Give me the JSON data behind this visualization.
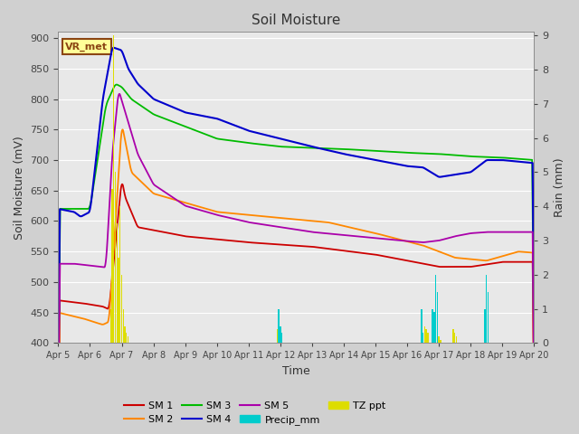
{
  "title": "Soil Moisture",
  "xlabel": "Time",
  "ylabel_left": "Soil Moisture (mV)",
  "ylabel_right": "Rain (mm)",
  "ylim_left": [
    400,
    910
  ],
  "ylim_right": [
    0,
    9.1
  ],
  "yticks_left": [
    400,
    450,
    500,
    550,
    600,
    650,
    700,
    750,
    800,
    850,
    900
  ],
  "yticks_right": [
    0.0,
    1.0,
    2.0,
    3.0,
    4.0,
    5.0,
    6.0,
    7.0,
    8.0,
    9.0
  ],
  "xtick_labels": [
    "Apr 5",
    "Apr 6",
    "Apr 7",
    "Apr 8",
    "Apr 9",
    "Apr 10",
    "Apr 11",
    "Apr 12",
    "Apr 13",
    "Apr 14",
    "Apr 15",
    "Apr 16",
    "Apr 17",
    "Apr 18",
    "Apr 19",
    "Apr 20"
  ],
  "bg_color": "#d0d0d0",
  "plot_bg_color": "#e8e8e8",
  "annotation_text": "VR_met",
  "annotation_box_color": "#ffff99",
  "annotation_border_color": "#8b4513",
  "colors": {
    "SM1": "#cc0000",
    "SM2": "#ff8800",
    "SM3": "#00bb00",
    "SM4": "#0000cc",
    "SM5": "#aa00aa",
    "Precip_mm": "#00cccc",
    "TZ_ppt": "#dddd00"
  }
}
